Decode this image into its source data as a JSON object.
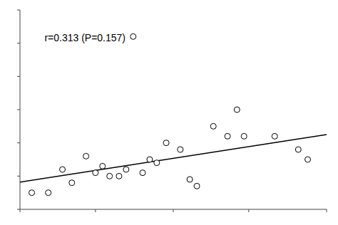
{
  "chart_data": {
    "type": "scatter",
    "annotation": "r=0.313 (P=0.157)",
    "series": [
      {
        "type": "scatter",
        "marker": "hollow-circle",
        "color": "black",
        "x": [
          5,
          12,
          18,
          22,
          28,
          32,
          35,
          38,
          42,
          45,
          48,
          52,
          55,
          58,
          62,
          68,
          72,
          75,
          82,
          88,
          92,
          95,
          108,
          118,
          122
        ],
        "values": [
          0.5,
          0.5,
          1.2,
          0.8,
          1.6,
          1.1,
          1.3,
          1.0,
          1.0,
          1.2,
          5.2,
          1.1,
          1.5,
          1.4,
          2.0,
          1.8,
          0.9,
          0.7,
          2.5,
          2.2,
          3.0,
          2.2,
          2.2,
          1.8,
          1.5
        ]
      },
      {
        "type": "line",
        "line_style": "solid",
        "color": "black",
        "x": [
          0,
          130
        ],
        "values": [
          0.82,
          2.25
        ]
      }
    ],
    "xlim": [
      0,
      130
    ],
    "ylim": [
      0.0,
      6.0
    ],
    "xticks": [
      0,
      32,
      65,
      97,
      130
    ],
    "yticks": [
      0,
      1,
      2,
      3,
      4,
      5,
      6
    ],
    "tick_labels": false,
    "grid": false
  }
}
